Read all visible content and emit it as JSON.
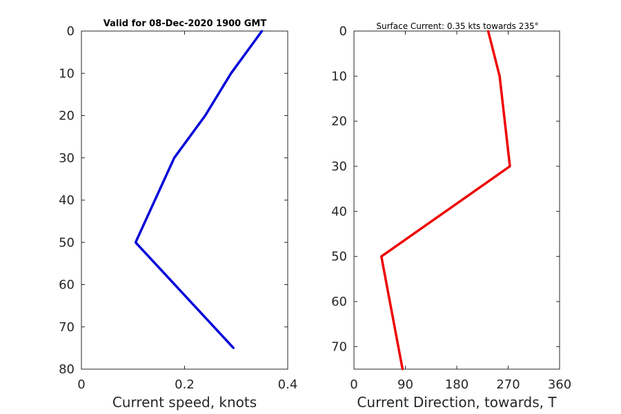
{
  "chart_data": [
    {
      "type": "line",
      "title": "Valid for 08-Dec-2020 1900 GMT",
      "xlabel": "Current speed, knots",
      "ylabel": "",
      "xlim": [
        0,
        0.4
      ],
      "ylim": [
        0,
        80
      ],
      "y_reversed": true,
      "xticks": [
        "0",
        "0.2",
        "0.4"
      ],
      "yticks": [
        "0",
        "10",
        "20",
        "30",
        "40",
        "50",
        "60",
        "70",
        "80"
      ],
      "grid": false,
      "color": "#0000d9",
      "series": [
        {
          "x": [
            0.35,
            0.29,
            0.24,
            0.18,
            0.105,
            0.295
          ],
          "y": [
            0,
            10,
            20,
            30,
            50,
            75
          ]
        }
      ]
    },
    {
      "type": "line",
      "title": "Surface Current: 0.35 kts towards 235°",
      "xlabel": "Current Direction, towards, T",
      "ylabel": "",
      "xlim": [
        0,
        360
      ],
      "ylim": [
        0,
        75
      ],
      "y_reversed": true,
      "xticks": [
        "0",
        "90",
        "180",
        "270",
        "360"
      ],
      "yticks": [
        "0",
        "10",
        "20",
        "30",
        "40",
        "50",
        "60",
        "70"
      ],
      "grid": false,
      "color": "#ee0000",
      "series": [
        {
          "x": [
            235,
            255,
            273,
            48,
            85
          ],
          "y": [
            0,
            10,
            30,
            50,
            75
          ]
        }
      ]
    }
  ]
}
